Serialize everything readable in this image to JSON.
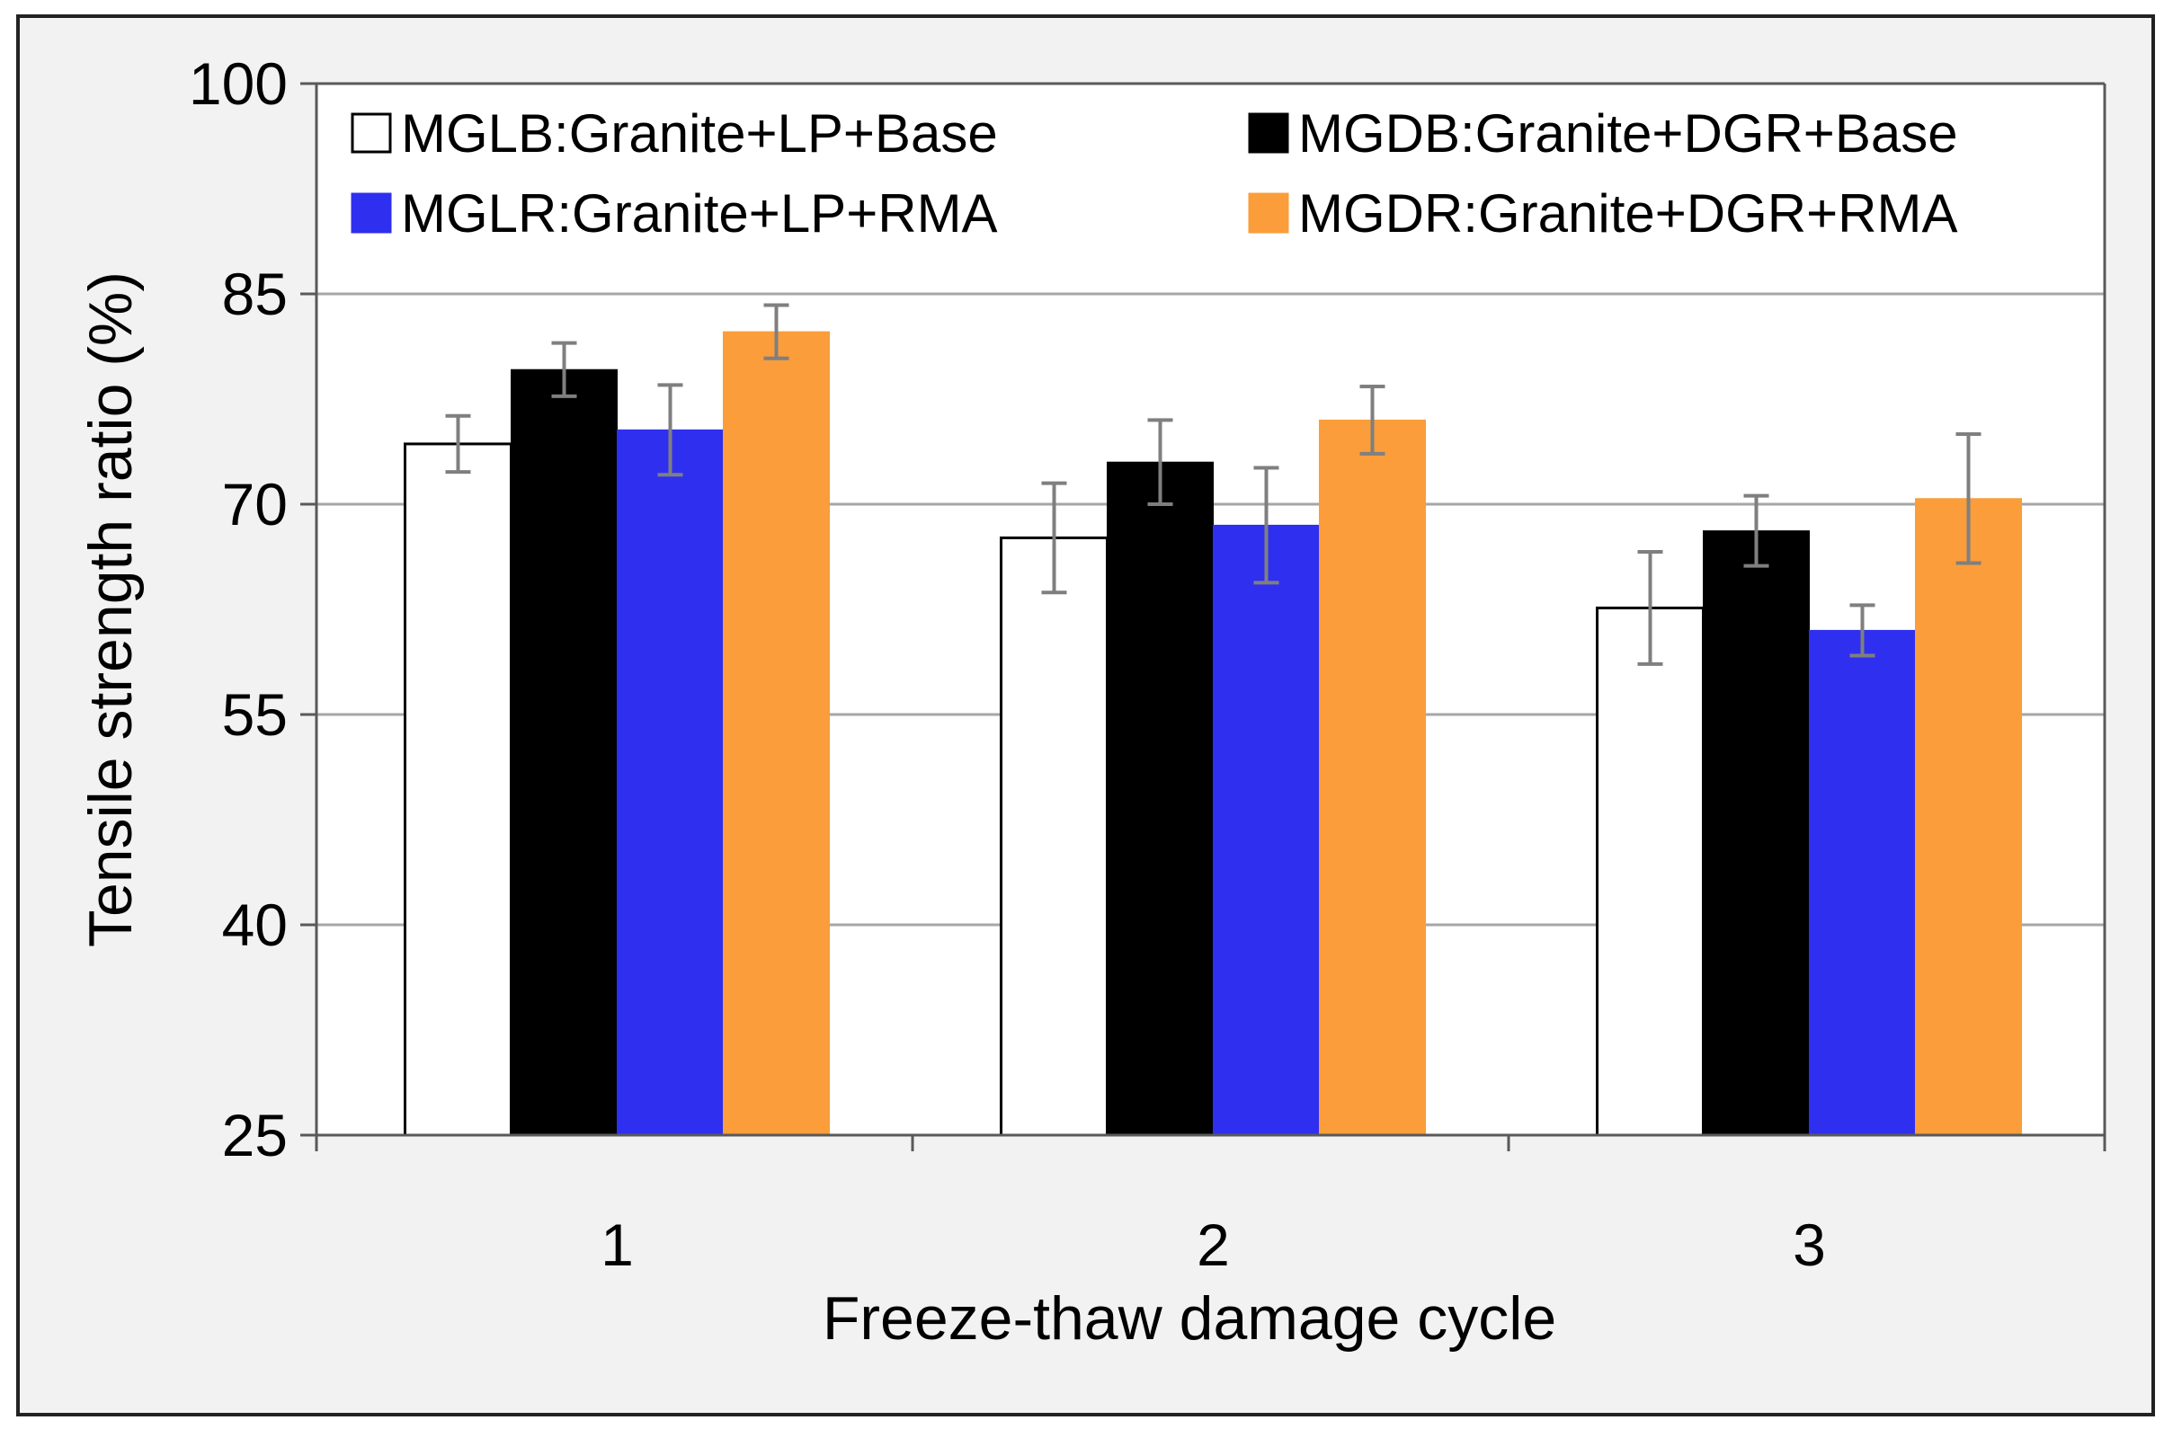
{
  "chart_data": {
    "type": "bar",
    "title": "",
    "xlabel": "Freeze-thaw damage cycle",
    "ylabel": "Tensile strength ratio (%)",
    "categories": [
      "1",
      "2",
      "3"
    ],
    "ylim": [
      25,
      100
    ],
    "yticks": [
      "25",
      "40",
      "55",
      "70",
      "85",
      "100"
    ],
    "grid": true,
    "legend_position": "top",
    "series": [
      {
        "name": "MGLB:Granite+LP+Base",
        "color": "#ffffff",
        "values": [
          74.3,
          67.6,
          62.6
        ],
        "errors": [
          2.0,
          3.9,
          4.0
        ]
      },
      {
        "name": "MGDB:Granite+DGR+Base",
        "color": "#000000",
        "values": [
          79.6,
          73.0,
          68.1
        ],
        "errors": [
          1.9,
          3.0,
          2.5
        ]
      },
      {
        "name": "MGLR:Granite+LP+RMA",
        "color": "#2f2ff0",
        "values": [
          75.3,
          68.5,
          61.0
        ],
        "errors": [
          3.2,
          4.1,
          1.8
        ]
      },
      {
        "name": "MGDR:Granite+DGR+RMA",
        "color": "#fa9d3a",
        "values": [
          82.3,
          76.0,
          70.4
        ],
        "errors": [
          1.9,
          2.4,
          4.6
        ]
      }
    ]
  }
}
